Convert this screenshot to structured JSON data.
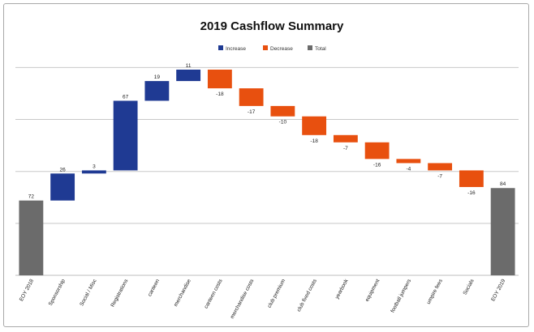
{
  "chart_data": {
    "type": "waterfall",
    "title": "2019 Cashflow Summary",
    "legend": {
      "position": "top",
      "entries": [
        {
          "label": "Increase",
          "color": "#1f3a93"
        },
        {
          "label": "Decrease",
          "color": "#e8500f"
        },
        {
          "label": "Total",
          "color": "#6b6b6b"
        }
      ]
    },
    "categories": [
      "EOY 2018",
      "Sponsorship",
      "Social / Misc",
      "Registrations",
      "canteen",
      "merchandise",
      "canteen costs",
      "merchandise costs",
      "club premium",
      "club fixed costs",
      "yearbook",
      "equipment",
      "football jumpers",
      "umpire fees",
      "Socials",
      "EOY 2019"
    ],
    "points": [
      {
        "category": "EOY 2018",
        "kind": "total",
        "value": 72,
        "label": "72"
      },
      {
        "category": "Sponsorship",
        "kind": "increase",
        "value": 26,
        "label": "26"
      },
      {
        "category": "Social / Misc",
        "kind": "increase",
        "value": 3,
        "label": "3"
      },
      {
        "category": "Registrations",
        "kind": "increase",
        "value": 67,
        "label": "67"
      },
      {
        "category": "canteen",
        "kind": "increase",
        "value": 19,
        "label": "19"
      },
      {
        "category": "merchandise",
        "kind": "increase",
        "value": 11,
        "label": "11"
      },
      {
        "category": "canteen costs",
        "kind": "decrease",
        "value": -18,
        "label": "-18"
      },
      {
        "category": "merchandise costs",
        "kind": "decrease",
        "value": -17,
        "label": "-17"
      },
      {
        "category": "club premium",
        "kind": "decrease",
        "value": -10,
        "label": "-10"
      },
      {
        "category": "club fixed costs",
        "kind": "decrease",
        "value": -18,
        "label": "-18"
      },
      {
        "category": "yearbook",
        "kind": "decrease",
        "value": -7,
        "label": "-7"
      },
      {
        "category": "equipment",
        "kind": "decrease",
        "value": -16,
        "label": "-16"
      },
      {
        "category": "football jumpers",
        "kind": "decrease",
        "value": -4,
        "label": "-4"
      },
      {
        "category": "umpire fees",
        "kind": "decrease",
        "value": -7,
        "label": "-7"
      },
      {
        "category": "Socials",
        "kind": "decrease",
        "value": -16,
        "label": "-16"
      },
      {
        "category": "EOY 2019",
        "kind": "total",
        "value": 84,
        "label": "84"
      }
    ],
    "ylim": [
      0,
      205
    ],
    "grid": true,
    "xlabel": "",
    "ylabel": ""
  }
}
